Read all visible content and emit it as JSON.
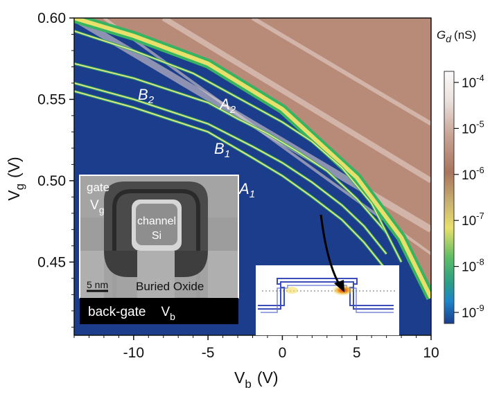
{
  "chart_data": {
    "type": "heatmap",
    "title": "",
    "xlabel": "V",
    "xlabel_sub": "b",
    "xlabel_unit": "(V)",
    "ylabel": "V",
    "ylabel_sub": "g",
    "ylabel_unit": "(V)",
    "xlim": [
      -14,
      10
    ],
    "ylim": [
      0.405,
      0.6
    ],
    "x_ticks": [
      -10,
      -5,
      0,
      5,
      10
    ],
    "x_tick_labels": [
      "-10",
      "-5",
      "0",
      "5",
      "10"
    ],
    "y_ticks": [
      0.45,
      0.5,
      0.55,
      0.6
    ],
    "y_tick_labels": [
      "0.45",
      "0.50",
      "0.55",
      "0.60"
    ],
    "colorbar": {
      "label": "G",
      "label_sub": "d",
      "label_unit": "(nS)",
      "base": "10",
      "exponents": [
        "-4",
        "-5",
        "-6",
        "-7",
        "-8",
        "-9"
      ],
      "scale": "log",
      "colors_top_to_bottom": [
        "#fbfafa",
        "#e4d4cf",
        "#b98876",
        "#a9745d",
        "#e8e06a",
        "#36b461",
        "#1d86c8",
        "#1b3d8c"
      ]
    },
    "background_color": "#1b3d8c",
    "curve_labels": [
      {
        "base": "B",
        "sub": "2"
      },
      {
        "base": "A",
        "sub": "2"
      },
      {
        "base": "B",
        "sub": "1"
      },
      {
        "base": "A",
        "sub": "1"
      }
    ],
    "resonance_lines": [
      {
        "name": "A1",
        "x": [
          -14,
          -10,
          -5,
          -2,
          0,
          2,
          4,
          5.5,
          7
        ],
        "y": [
          0.555,
          0.545,
          0.53,
          0.514,
          0.503,
          0.49,
          0.476,
          0.462,
          0.445
        ]
      },
      {
        "name": "B1",
        "x": [
          -14,
          -10,
          -5,
          -2,
          0,
          2,
          4,
          5.5,
          7
        ],
        "y": [
          0.56,
          0.55,
          0.535,
          0.521,
          0.511,
          0.499,
          0.485,
          0.472,
          0.455
        ]
      },
      {
        "name": "A2",
        "x": [
          -14,
          -10,
          -5,
          -3,
          -1,
          1,
          3,
          5,
          7
        ],
        "y": [
          0.572,
          0.563,
          0.548,
          0.538,
          0.529,
          0.518,
          0.506,
          0.489,
          0.468
        ]
      },
      {
        "name": "B2",
        "x": [
          -14,
          -10,
          -6,
          -4,
          -2,
          0,
          2,
          4,
          6,
          8
        ],
        "y": [
          0.592,
          0.58,
          0.566,
          0.556,
          0.546,
          0.536,
          0.524,
          0.508,
          0.486,
          0.45
        ]
      }
    ],
    "high_conduction_edge": {
      "x": [
        -14,
        -10,
        -5,
        0,
        5,
        8,
        10
      ],
      "y": [
        0.6,
        0.589,
        0.572,
        0.544,
        0.502,
        0.465,
        0.428
      ]
    }
  },
  "inset_tem": {
    "gate_label": "gate",
    "gate_symbol": "V",
    "gate_sub": "g",
    "channel_label": "channel",
    "channel_material": "Si",
    "scale_bar": "5 nm",
    "oxide_label": "Buried Oxide",
    "backgate_label": "back-gate",
    "backgate_symbol": "V",
    "backgate_sub": "b"
  }
}
